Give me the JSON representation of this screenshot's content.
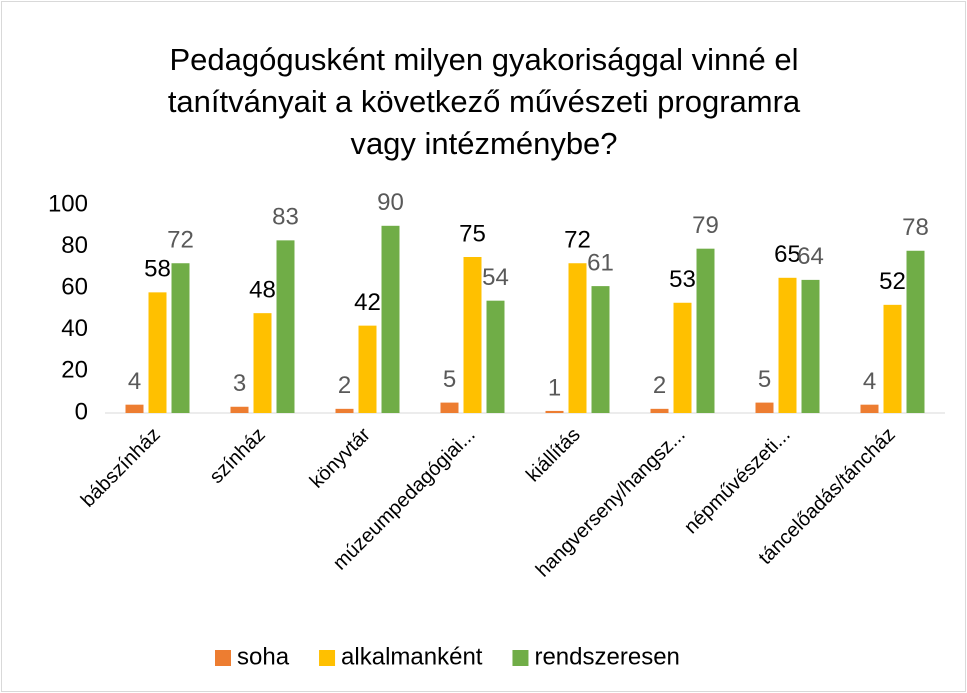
{
  "chart_data": {
    "type": "bar",
    "title": [
      "Pedagógusként milyen gyakorisággal vinné el",
      "tanítványait a következő művészeti programra",
      "vagy intézménybe?"
    ],
    "categories": [
      "bábszínház",
      "színház",
      "könyvtár",
      "múzeumpedagógiai...",
      "kiállítás",
      "hangverseny/hangsz...",
      "népművészeti...",
      "táncelőadás/táncház"
    ],
    "series": [
      {
        "name": "soha",
        "color": "#ed7d31",
        "values": [
          4,
          3,
          2,
          5,
          1,
          2,
          5,
          4
        ]
      },
      {
        "name": "alkalmanként",
        "color": "#ffc000",
        "values": [
          58,
          48,
          42,
          75,
          72,
          53,
          65,
          52
        ]
      },
      {
        "name": "rendszeresen",
        "color": "#70ad47",
        "values": [
          72,
          83,
          90,
          54,
          61,
          79,
          64,
          78
        ]
      }
    ],
    "ylim": [
      0,
      100
    ],
    "yticks": [
      0,
      20,
      40,
      60,
      80,
      100
    ],
    "grid": false,
    "legend": "bottom"
  }
}
